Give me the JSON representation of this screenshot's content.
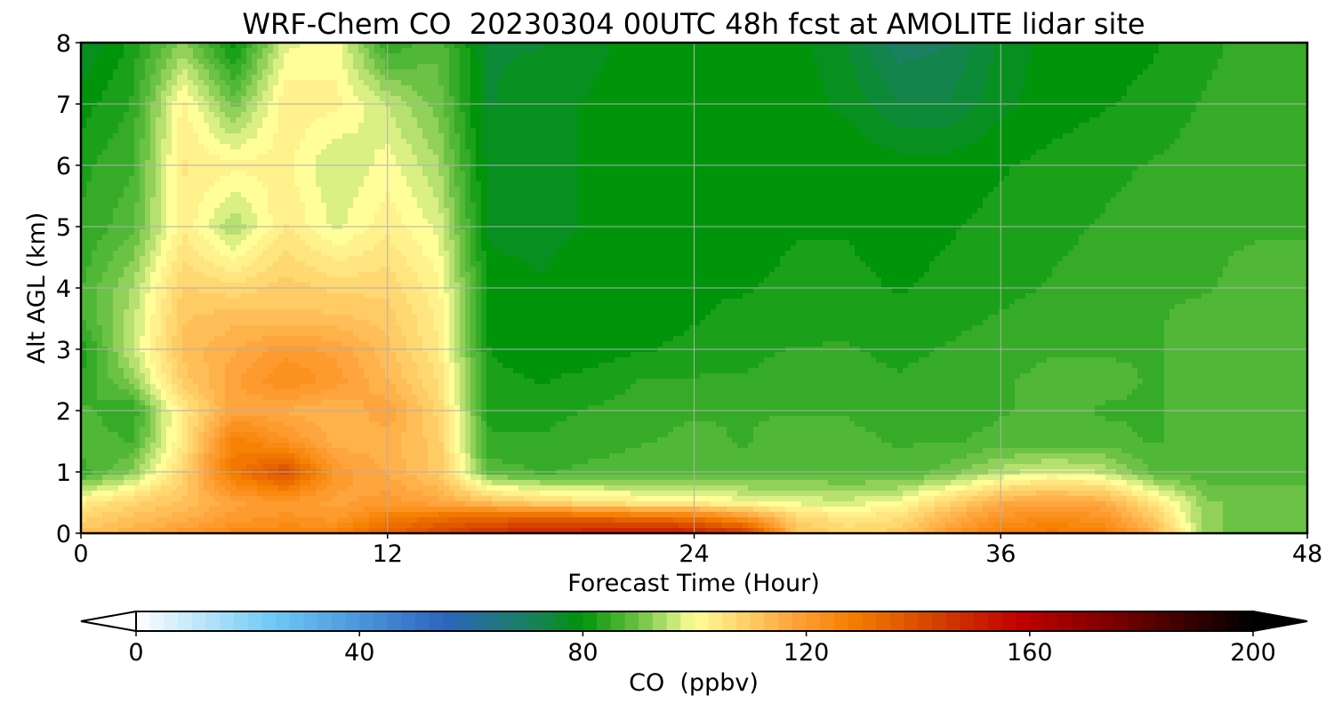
{
  "chart_data": {
    "type": "heatmap",
    "title": "WRF-Chem CO  20230304 00UTC 48h fcst at AMOLITE lidar site",
    "xlabel": "Forecast Time (Hour)",
    "ylabel": "Alt AGL (km)",
    "xlim": [
      0,
      48
    ],
    "ylim": [
      0,
      8
    ],
    "x_ticks": [
      0,
      12,
      24,
      36,
      48
    ],
    "y_ticks": [
      0,
      1,
      2,
      3,
      4,
      5,
      6,
      7,
      8
    ],
    "grid": true,
    "colorbar": {
      "label": "CO  (ppbv)",
      "range": [
        0,
        200
      ],
      "ticks": [
        0,
        40,
        80,
        120,
        160,
        200
      ],
      "extend": "both",
      "colors": [
        {
          "value": 0,
          "color": "#ffffff"
        },
        {
          "value": 25,
          "color": "#6cc8f4"
        },
        {
          "value": 55,
          "color": "#2d64c0"
        },
        {
          "value": 70,
          "color": "#1a7f63"
        },
        {
          "value": 80,
          "color": "#00940a"
        },
        {
          "value": 90,
          "color": "#6cc244"
        },
        {
          "value": 100,
          "color": "#fffe99"
        },
        {
          "value": 118,
          "color": "#ffa23a"
        },
        {
          "value": 128,
          "color": "#f57f00"
        },
        {
          "value": 145,
          "color": "#d03a00"
        },
        {
          "value": 158,
          "color": "#c10000"
        },
        {
          "value": 175,
          "color": "#7a0000"
        },
        {
          "value": 200,
          "color": "#000000"
        }
      ]
    },
    "grid_data": {
      "x": [
        0,
        2,
        4,
        6,
        8,
        10,
        12,
        14,
        16,
        18,
        20,
        22,
        24,
        26,
        28,
        30,
        32,
        34,
        36,
        38,
        40,
        42,
        44,
        46,
        48
      ],
      "y": [
        0,
        0.25,
        0.5,
        1,
        1.5,
        2,
        2.5,
        3,
        3.5,
        4,
        5,
        6,
        7,
        8
      ],
      "z": [
        [
          112,
          115,
          120,
          125,
          126,
          127,
          135,
          142,
          148,
          150,
          152,
          155,
          152,
          145,
          112,
          108,
          110,
          120,
          128,
          130,
          128,
          115,
          92,
          90,
          90
        ],
        [
          108,
          112,
          115,
          120,
          122,
          120,
          128,
          132,
          134,
          135,
          135,
          132,
          130,
          122,
          108,
          104,
          106,
          115,
          122,
          124,
          122,
          110,
          92,
          90,
          90
        ],
        [
          103,
          108,
          112,
          118,
          120,
          118,
          120,
          117,
          112,
          108,
          105,
          103,
          102,
          100,
          98,
          97,
          100,
          108,
          116,
          118,
          116,
          105,
          92,
          90,
          90
        ],
        [
          85,
          92,
          108,
          130,
          140,
          120,
          116,
          110,
          88,
          86,
          87,
          88,
          87,
          87,
          88,
          88,
          87,
          90,
          95,
          98,
          96,
          88,
          87,
          88,
          88
        ],
        [
          88,
          86,
          104,
          128,
          122,
          115,
          115,
          110,
          84,
          84,
          85,
          86,
          87,
          86,
          88,
          87,
          86,
          86,
          87,
          87,
          87,
          86,
          87,
          87,
          87
        ],
        [
          87,
          84,
          104,
          118,
          116,
          114,
          118,
          108,
          83,
          83,
          84,
          85,
          86,
          86,
          86,
          86,
          85,
          85,
          86,
          87,
          86,
          86,
          87,
          87,
          87
        ],
        [
          84,
          92,
          110,
          118,
          124,
          120,
          114,
          106,
          82,
          81,
          82,
          84,
          84,
          84,
          85,
          85,
          84,
          85,
          86,
          87,
          87,
          86,
          87,
          87,
          87
        ],
        [
          82,
          96,
          112,
          116,
          120,
          118,
          112,
          104,
          81,
          80,
          80,
          81,
          82,
          83,
          84,
          84,
          83,
          84,
          85,
          86,
          86,
          86,
          87,
          87,
          87
        ],
        [
          86,
          95,
          111,
          113,
          112,
          112,
          110,
          103,
          80,
          79,
          80,
          80,
          81,
          82,
          82,
          83,
          82,
          83,
          84,
          85,
          86,
          86,
          87,
          87,
          87
        ],
        [
          86,
          94,
          109,
          107,
          110,
          108,
          108,
          102,
          80,
          79,
          80,
          80,
          81,
          81,
          82,
          82,
          81,
          82,
          83,
          84,
          85,
          86,
          86,
          87,
          87
        ],
        [
          84,
          88,
          103,
          94,
          104,
          98,
          103,
          98,
          78,
          78,
          79,
          79,
          80,
          80,
          81,
          81,
          80,
          81,
          82,
          83,
          84,
          85,
          86,
          86,
          86
        ],
        [
          83,
          86,
          104,
          102,
          102,
          96,
          100,
          94,
          77,
          78,
          79,
          80,
          80,
          80,
          81,
          81,
          80,
          80,
          81,
          82,
          83,
          84,
          85,
          86,
          86
        ],
        [
          80,
          84,
          102,
          90,
          103,
          102,
          96,
          90,
          76,
          78,
          79,
          80,
          80,
          79,
          80,
          78,
          74,
          74,
          78,
          80,
          81,
          82,
          84,
          85,
          86
        ],
        [
          76,
          82,
          92,
          80,
          98,
          100,
          84,
          88,
          76,
          76,
          78,
          80,
          80,
          79,
          80,
          76,
          70,
          71,
          77,
          80,
          80,
          81,
          83,
          85,
          86
        ]
      ]
    }
  }
}
